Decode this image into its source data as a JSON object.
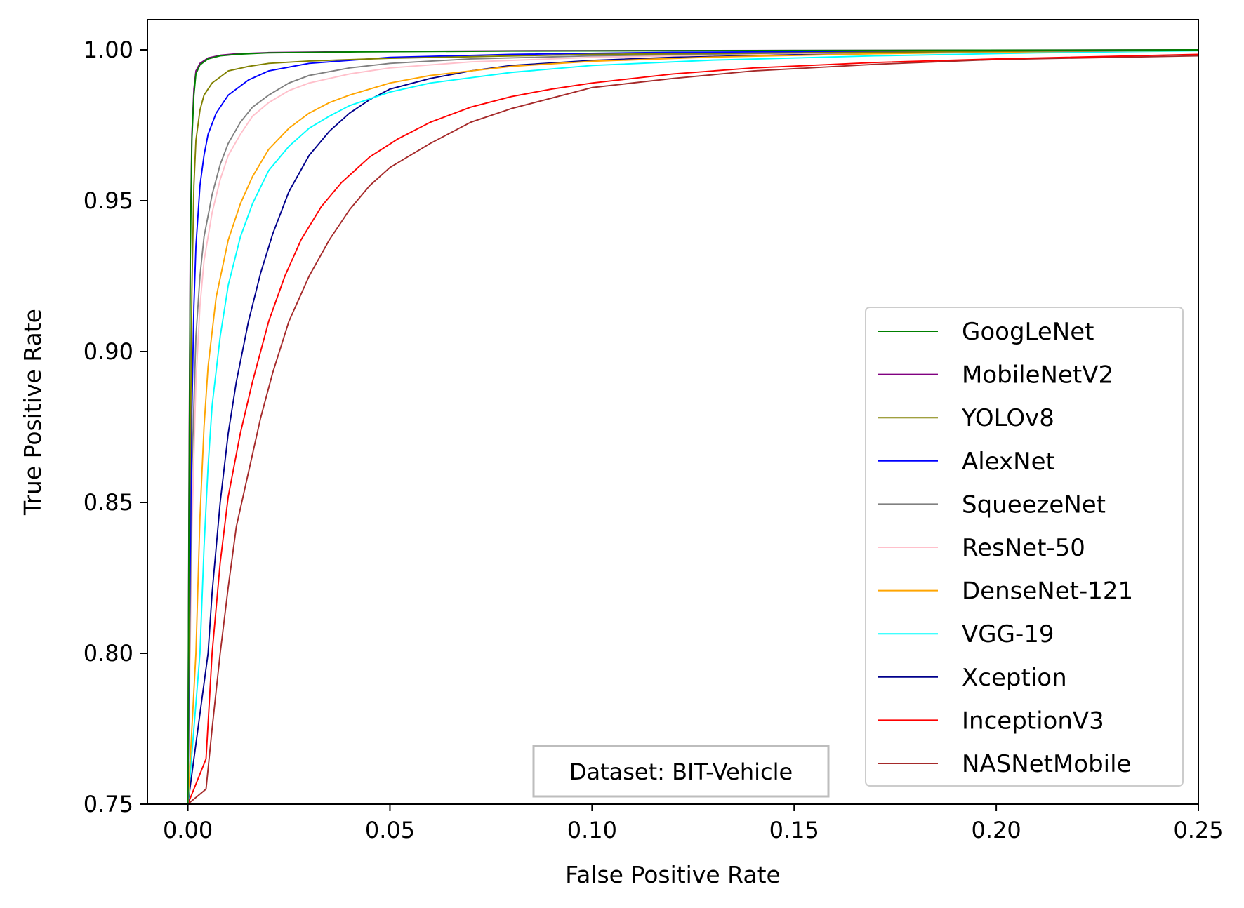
{
  "chart_data": {
    "type": "line",
    "title": "",
    "xlabel": "False Positive Rate",
    "ylabel": "True Positive Rate",
    "xlim": [
      -0.01,
      0.25
    ],
    "ylim": [
      0.75,
      1.01
    ],
    "xticks": [
      0.0,
      0.05,
      0.1,
      0.15,
      0.2,
      0.25
    ],
    "xtick_labels": [
      "0.00",
      "0.05",
      "0.10",
      "0.15",
      "0.20",
      "0.25"
    ],
    "yticks": [
      0.75,
      0.8,
      0.85,
      0.9,
      0.95,
      1.0
    ],
    "ytick_labels": [
      "0.75",
      "0.80",
      "0.85",
      "0.90",
      "0.95",
      "1.00"
    ],
    "grid": false,
    "legend_position": "lower-right",
    "annotation": "Dataset: BIT-Vehicle",
    "series": [
      {
        "name": "GoogLeNet",
        "color": "#008000",
        "x": [
          0,
          0.0003,
          0.0006,
          0.001,
          0.0015,
          0.002,
          0.003,
          0.005,
          0.008,
          0.012,
          0.02,
          0.04,
          0.08,
          0.15,
          0.25
        ],
        "y": [
          0.75,
          0.85,
          0.93,
          0.97,
          0.985,
          0.992,
          0.995,
          0.997,
          0.998,
          0.9985,
          0.999,
          0.9993,
          0.9996,
          0.9998,
          1.0
        ]
      },
      {
        "name": "MobileNetV2",
        "color": "#800080",
        "x": [
          0,
          0.0003,
          0.0006,
          0.001,
          0.0015,
          0.002,
          0.003,
          0.005,
          0.008,
          0.012,
          0.02,
          0.04,
          0.08,
          0.15,
          0.25
        ],
        "y": [
          0.75,
          0.86,
          0.935,
          0.972,
          0.987,
          0.993,
          0.9955,
          0.9973,
          0.9982,
          0.9987,
          0.9991,
          0.9994,
          0.9997,
          0.9998,
          1.0
        ]
      },
      {
        "name": "YOLOv8",
        "color": "#808000",
        "x": [
          0,
          0.0005,
          0.001,
          0.0015,
          0.002,
          0.003,
          0.004,
          0.006,
          0.008,
          0.01,
          0.015,
          0.02,
          0.03,
          0.05,
          0.1,
          0.25
        ],
        "y": [
          0.75,
          0.85,
          0.92,
          0.955,
          0.97,
          0.98,
          0.985,
          0.989,
          0.991,
          0.993,
          0.9945,
          0.9955,
          0.9963,
          0.9972,
          0.9985,
          1.0
        ]
      },
      {
        "name": "AlexNet",
        "color": "#0000ff",
        "x": [
          0,
          0.0005,
          0.001,
          0.0015,
          0.002,
          0.003,
          0.004,
          0.005,
          0.007,
          0.01,
          0.015,
          0.02,
          0.03,
          0.05,
          0.08,
          0.12,
          0.18,
          0.25
        ],
        "y": [
          0.75,
          0.82,
          0.88,
          0.915,
          0.935,
          0.955,
          0.965,
          0.972,
          0.979,
          0.985,
          0.99,
          0.993,
          0.9955,
          0.9975,
          0.9985,
          0.9992,
          0.9996,
          0.9998
        ]
      },
      {
        "name": "SqueezeNet",
        "color": "#808080",
        "x": [
          0,
          0.001,
          0.002,
          0.003,
          0.004,
          0.006,
          0.008,
          0.01,
          0.013,
          0.016,
          0.02,
          0.025,
          0.03,
          0.04,
          0.05,
          0.07,
          0.1,
          0.15,
          0.2,
          0.25
        ],
        "y": [
          0.75,
          0.86,
          0.905,
          0.925,
          0.938,
          0.952,
          0.962,
          0.969,
          0.976,
          0.981,
          0.985,
          0.989,
          0.9915,
          0.994,
          0.9955,
          0.997,
          0.998,
          0.999,
          0.9995,
          0.9998
        ]
      },
      {
        "name": "ResNet-50",
        "color": "#ffc0cb",
        "x": [
          0,
          0.001,
          0.002,
          0.003,
          0.004,
          0.006,
          0.008,
          0.01,
          0.013,
          0.016,
          0.02,
          0.025,
          0.03,
          0.04,
          0.05,
          0.07,
          0.1,
          0.15,
          0.2,
          0.25
        ],
        "y": [
          0.75,
          0.84,
          0.89,
          0.915,
          0.93,
          0.946,
          0.957,
          0.965,
          0.972,
          0.978,
          0.9825,
          0.9865,
          0.989,
          0.992,
          0.994,
          0.996,
          0.9975,
          0.9988,
          0.9995,
          0.9998
        ]
      },
      {
        "name": "DenseNet-121",
        "color": "#ffa500",
        "x": [
          0,
          0.002,
          0.003,
          0.004,
          0.005,
          0.007,
          0.01,
          0.013,
          0.016,
          0.02,
          0.025,
          0.03,
          0.035,
          0.04,
          0.05,
          0.06,
          0.08,
          0.1,
          0.13,
          0.17,
          0.21,
          0.25
        ],
        "y": [
          0.75,
          0.8,
          0.845,
          0.875,
          0.895,
          0.918,
          0.937,
          0.949,
          0.958,
          0.967,
          0.974,
          0.979,
          0.9825,
          0.985,
          0.989,
          0.9915,
          0.9945,
          0.9962,
          0.9976,
          0.9987,
          0.9994,
          0.9998
        ]
      },
      {
        "name": "VGG-19",
        "color": "#00ffff",
        "x": [
          0,
          0.003,
          0.004,
          0.005,
          0.006,
          0.008,
          0.01,
          0.013,
          0.016,
          0.02,
          0.025,
          0.03,
          0.035,
          0.04,
          0.05,
          0.06,
          0.08,
          0.1,
          0.13,
          0.17,
          0.21,
          0.25
        ],
        "y": [
          0.75,
          0.8,
          0.835,
          0.862,
          0.882,
          0.905,
          0.922,
          0.938,
          0.949,
          0.96,
          0.968,
          0.974,
          0.978,
          0.9815,
          0.986,
          0.989,
          0.9925,
          0.9948,
          0.9966,
          0.998,
          0.999,
          0.9997
        ]
      },
      {
        "name": "Xception",
        "color": "#00008b",
        "x": [
          0,
          0.005,
          0.006,
          0.008,
          0.01,
          0.012,
          0.015,
          0.018,
          0.021,
          0.025,
          0.03,
          0.035,
          0.04,
          0.045,
          0.05,
          0.06,
          0.07,
          0.08,
          0.1,
          0.12,
          0.15,
          0.18,
          0.22,
          0.25
        ],
        "y": [
          0.75,
          0.8,
          0.82,
          0.85,
          0.873,
          0.89,
          0.91,
          0.926,
          0.939,
          0.953,
          0.965,
          0.973,
          0.979,
          0.9835,
          0.987,
          0.9905,
          0.993,
          0.9948,
          0.9965,
          0.9975,
          0.9984,
          0.999,
          0.9995,
          0.9998
        ]
      },
      {
        "name": "InceptionV3",
        "color": "#ff0000",
        "x": [
          0,
          0.0045,
          0.006,
          0.008,
          0.01,
          0.013,
          0.016,
          0.02,
          0.024,
          0.028,
          0.033,
          0.038,
          0.045,
          0.052,
          0.06,
          0.07,
          0.08,
          0.09,
          0.1,
          0.12,
          0.14,
          0.17,
          0.2,
          0.25
        ],
        "y": [
          0.75,
          0.765,
          0.8,
          0.83,
          0.852,
          0.873,
          0.89,
          0.91,
          0.925,
          0.937,
          0.948,
          0.956,
          0.9645,
          0.9705,
          0.976,
          0.981,
          0.9845,
          0.987,
          0.989,
          0.992,
          0.994,
          0.9958,
          0.997,
          0.9985
        ]
      },
      {
        "name": "NASNetMobile",
        "color": "#a52a2a",
        "x": [
          0,
          0.0045,
          0.006,
          0.008,
          0.01,
          0.012,
          0.015,
          0.018,
          0.021,
          0.025,
          0.03,
          0.035,
          0.04,
          0.045,
          0.05,
          0.06,
          0.07,
          0.08,
          0.09,
          0.1,
          0.12,
          0.14,
          0.17,
          0.2,
          0.25
        ],
        "y": [
          0.75,
          0.755,
          0.775,
          0.8,
          0.822,
          0.842,
          0.86,
          0.878,
          0.893,
          0.91,
          0.925,
          0.937,
          0.947,
          0.955,
          0.961,
          0.969,
          0.976,
          0.9805,
          0.984,
          0.9875,
          0.9905,
          0.993,
          0.9952,
          0.9968,
          0.998
        ]
      }
    ]
  }
}
